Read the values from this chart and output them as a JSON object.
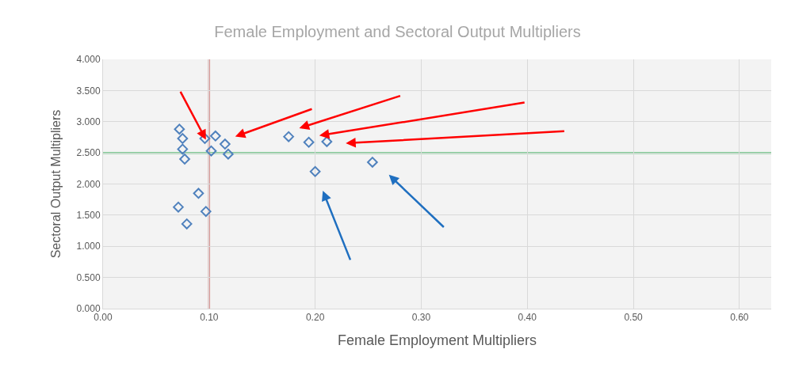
{
  "chart_data": {
    "type": "scatter",
    "title": "Female Employment and Sectoral Output Multipliers",
    "xlabel": "Female Employment Multipliers",
    "ylabel": "Sectoral Output Multipliers",
    "x": [
      0.072,
      0.075,
      0.075,
      0.077,
      0.096,
      0.106,
      0.102,
      0.115,
      0.118,
      0.175,
      0.194,
      0.211,
      0.254,
      0.2,
      0.09,
      0.071,
      0.097,
      0.079
    ],
    "values": [
      2.88,
      2.73,
      2.56,
      2.4,
      2.73,
      2.77,
      2.53,
      2.64,
      2.48,
      2.76,
      2.67,
      2.68,
      2.35,
      2.2,
      1.85,
      1.63,
      1.56,
      1.36
    ],
    "color": "#4f81bd",
    "marker": "diamond",
    "xlim": [
      0,
      0.63
    ],
    "xticks": [
      {
        "value": 0,
        "label": "0.00"
      },
      {
        "value": 0.1,
        "label": "0.10"
      },
      {
        "value": 0.2,
        "label": "0.20"
      },
      {
        "value": 0.3,
        "label": "0.30"
      },
      {
        "value": 0.4,
        "label": "0.40"
      },
      {
        "value": 0.5,
        "label": "0.50"
      },
      {
        "value": 0.6,
        "label": "0.60"
      }
    ],
    "ylim": [
      0,
      4
    ],
    "yticks": [
      {
        "value": 0,
        "label": "0.000"
      },
      {
        "value": 0.5,
        "label": "0.500"
      },
      {
        "value": 1,
        "label": "1.000"
      },
      {
        "value": 1.5,
        "label": "1.500"
      },
      {
        "value": 2,
        "label": "2.000"
      },
      {
        "value": 2.5,
        "label": "2.500"
      },
      {
        "value": 3,
        "label": "3.000"
      },
      {
        "value": 3.5,
        "label": "3.500"
      },
      {
        "value": 4,
        "label": "4.000"
      }
    ],
    "grid": true,
    "ref_lines": [
      {
        "axis": "x",
        "value": 0.1,
        "color": "#d99694"
      },
      {
        "axis": "y",
        "value": 2.5,
        "color": "#77c98f"
      }
    ]
  }
}
